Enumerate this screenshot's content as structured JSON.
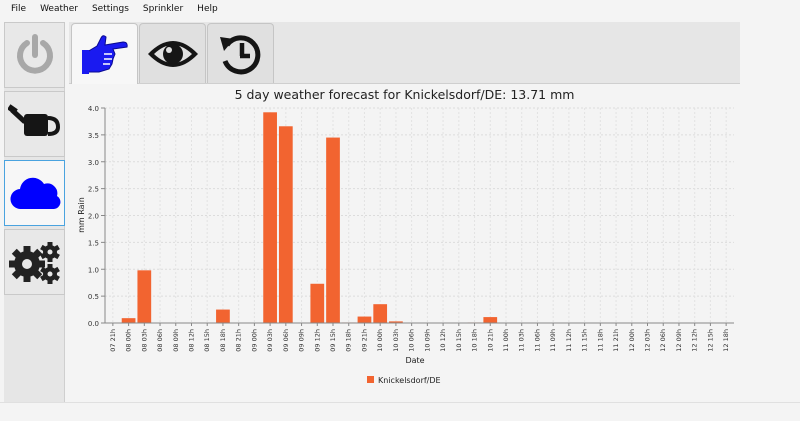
{
  "menu": [
    "File",
    "Weather",
    "Settings",
    "Sprinkler",
    "Help"
  ],
  "sidebar": [
    {
      "icon": "power-icon",
      "active": false
    },
    {
      "icon": "watering-can-icon",
      "active": false
    },
    {
      "icon": "cloud-icon",
      "active": true
    },
    {
      "icon": "gears-icon",
      "active": false
    }
  ],
  "tabs": [
    {
      "icon": "pointing-hand-icon",
      "active": true
    },
    {
      "icon": "eye-icon",
      "active": false
    },
    {
      "icon": "history-icon",
      "active": false
    }
  ],
  "colors": {
    "bar": "#f26430",
    "hand": "#1a1af0",
    "cloud": "#0000ff",
    "icon_dark": "#151515",
    "power": "#a8a8a8"
  },
  "chart_data": {
    "type": "bar",
    "title": "5 day weather forecast for Knickelsdorf/DE: 13.71 mm",
    "xlabel": "Date",
    "ylabel": "mm Rain",
    "ylim": [
      0,
      4.0
    ],
    "yticks": [
      "0.0",
      "0.5",
      "1.0",
      "1.5",
      "2.0",
      "2.5",
      "3.0",
      "3.5",
      "4.0"
    ],
    "grid": true,
    "legend_position": "bottom",
    "categories": [
      "07 21h",
      "08 00h",
      "08 03h",
      "08 06h",
      "08 09h",
      "08 12h",
      "08 15h",
      "08 18h",
      "08 21h",
      "09 00h",
      "09 03h",
      "09 06h",
      "09 09h",
      "09 12h",
      "09 15h",
      "09 18h",
      "09 21h",
      "10 00h",
      "10 03h",
      "10 06h",
      "10 09h",
      "10 12h",
      "10 15h",
      "10 18h",
      "10 21h",
      "11 00h",
      "11 03h",
      "11 06h",
      "11 09h",
      "11 12h",
      "11 15h",
      "11 18h",
      "11 21h",
      "12 00h",
      "12 03h",
      "12 06h",
      "12 09h",
      "12 12h",
      "12 15h",
      "12 18h"
    ],
    "series": [
      {
        "name": "Knickelsdorf/DE",
        "values": [
          0,
          0.09,
          0.98,
          0,
          0,
          0,
          0,
          0.25,
          0,
          0,
          3.92,
          3.66,
          0,
          0.73,
          3.45,
          0.01,
          0.12,
          0.35,
          0.03,
          0,
          0,
          0,
          0,
          0.01,
          0.11,
          0,
          0,
          0,
          0,
          0,
          0,
          0,
          0,
          0,
          0,
          0,
          0,
          0,
          0,
          0
        ]
      }
    ]
  }
}
